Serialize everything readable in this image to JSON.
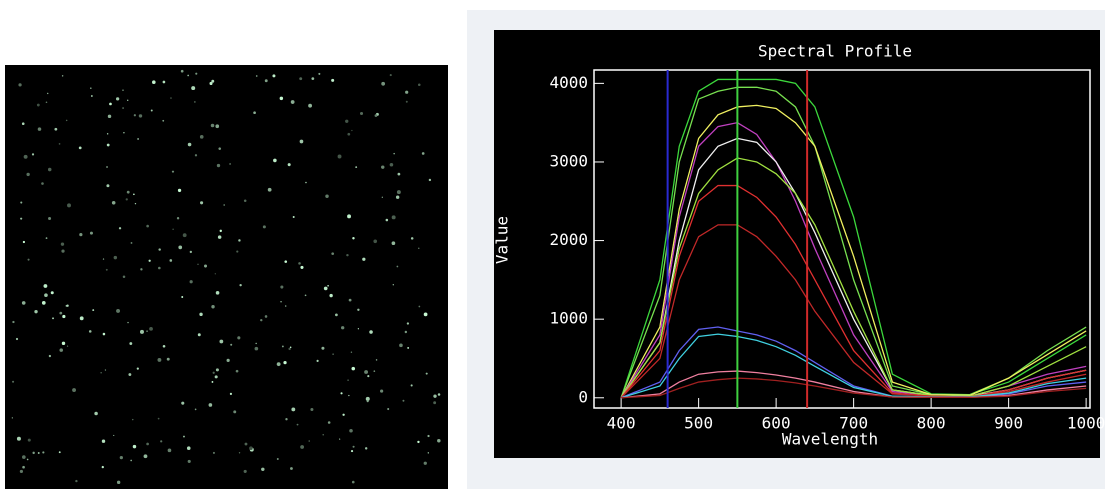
{
  "chart_data": {
    "type": "line",
    "title": "Spectral Profile",
    "x_label": "Wavelength",
    "y_label": "Value",
    "x": [
      400,
      450,
      475,
      500,
      525,
      550,
      575,
      600,
      625,
      650,
      700,
      750,
      800,
      850,
      900,
      950,
      1000
    ],
    "xlim": [
      365,
      1005
    ],
    "xticks": [
      400,
      500,
      600,
      700,
      800,
      900,
      1000
    ],
    "ylim": [
      -130,
      4170
    ],
    "yticks": [
      0,
      1000,
      2000,
      3000,
      4000
    ],
    "markers": [
      {
        "x": 460,
        "color": "#2a2ad0"
      },
      {
        "x": 550,
        "color": "#40d040"
      },
      {
        "x": 640,
        "color": "#d02a2a"
      }
    ],
    "series": [
      {
        "color": "#3cd83c",
        "values": [
          0,
          1500,
          3200,
          3900,
          4050,
          4050,
          4050,
          4050,
          4000,
          3700,
          2300,
          300,
          50,
          40,
          200,
          500,
          800
        ]
      },
      {
        "color": "#78e050",
        "values": [
          0,
          1300,
          3000,
          3800,
          3900,
          3950,
          3950,
          3900,
          3700,
          3200,
          1500,
          150,
          40,
          40,
          250,
          600,
          900
        ]
      },
      {
        "color": "#f0f060",
        "values": [
          0,
          900,
          2400,
          3300,
          3600,
          3700,
          3720,
          3680,
          3500,
          3200,
          1800,
          200,
          40,
          30,
          250,
          550,
          850
        ]
      },
      {
        "color": "#c040c0",
        "values": [
          0,
          800,
          2300,
          3200,
          3450,
          3500,
          3350,
          3000,
          2500,
          1900,
          800,
          80,
          30,
          20,
          150,
          300,
          400
        ]
      },
      {
        "color": "#f0f0f0",
        "values": [
          0,
          700,
          2000,
          2900,
          3200,
          3300,
          3250,
          3000,
          2600,
          2100,
          1000,
          100,
          30,
          20,
          100,
          250,
          350
        ]
      },
      {
        "color": "#a0e040",
        "values": [
          0,
          700,
          1900,
          2600,
          2900,
          3050,
          3000,
          2850,
          2600,
          2200,
          1100,
          100,
          30,
          20,
          150,
          400,
          650
        ]
      },
      {
        "color": "#e03030",
        "values": [
          0,
          600,
          1800,
          2500,
          2700,
          2700,
          2550,
          2300,
          1950,
          1500,
          600,
          60,
          20,
          10,
          100,
          250,
          350
        ]
      },
      {
        "color": "#c02828",
        "values": [
          0,
          500,
          1500,
          2050,
          2200,
          2200,
          2050,
          1800,
          1500,
          1100,
          450,
          50,
          20,
          10,
          80,
          200,
          300
        ]
      },
      {
        "color": "#6060f0",
        "values": [
          0,
          200,
          600,
          870,
          900,
          850,
          800,
          720,
          600,
          450,
          150,
          20,
          10,
          10,
          50,
          150,
          200
        ]
      },
      {
        "color": "#40d0e0",
        "values": [
          0,
          150,
          500,
          780,
          810,
          780,
          730,
          650,
          540,
          400,
          130,
          20,
          10,
          10,
          60,
          180,
          250
        ]
      },
      {
        "color": "#f080a0",
        "values": [
          0,
          50,
          200,
          300,
          330,
          340,
          320,
          290,
          250,
          200,
          80,
          10,
          5,
          5,
          30,
          100,
          150
        ]
      },
      {
        "color": "#a02020",
        "values": [
          0,
          30,
          120,
          200,
          230,
          250,
          240,
          220,
          190,
          150,
          60,
          10,
          5,
          5,
          20,
          80,
          120
        ]
      }
    ]
  }
}
